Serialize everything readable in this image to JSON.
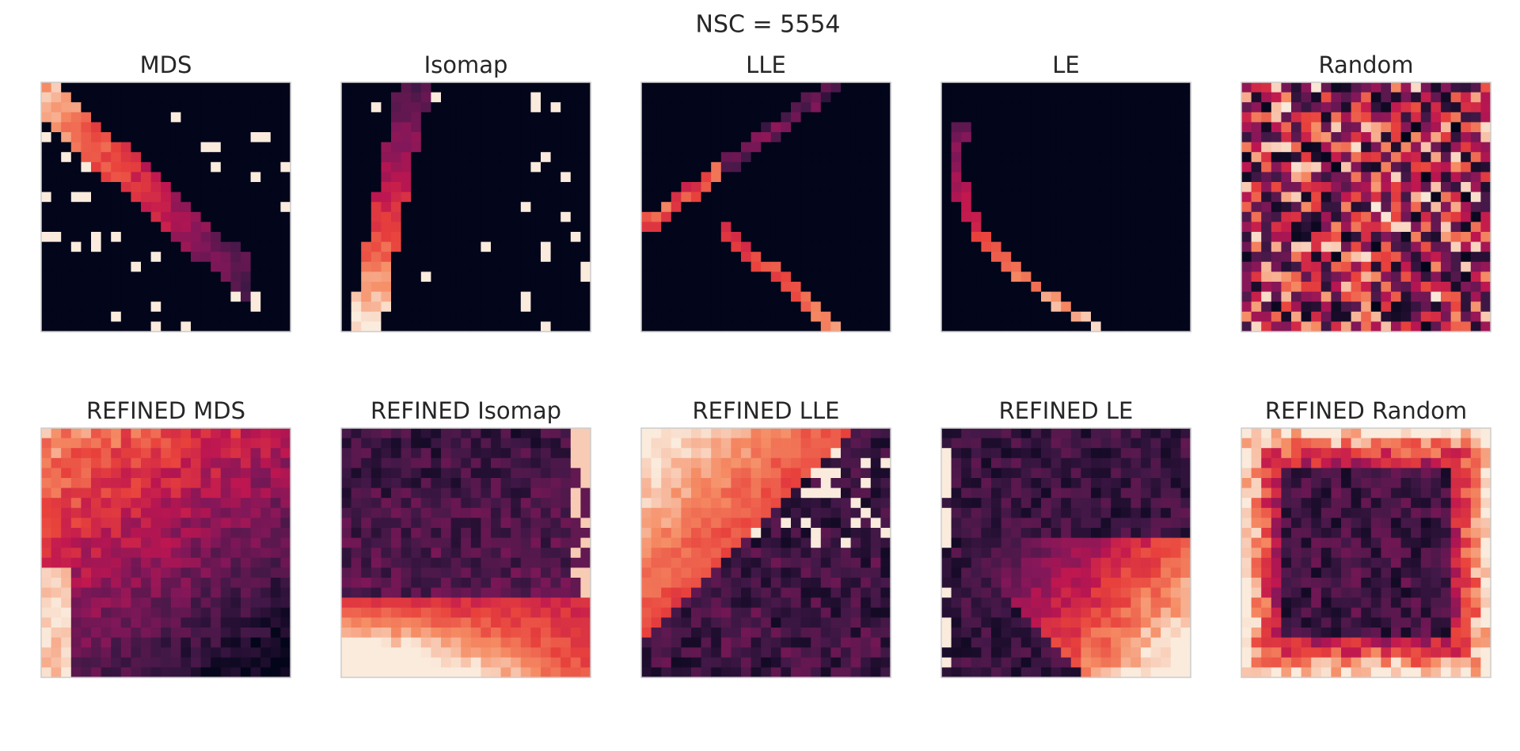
{
  "title": "NSC = 5554",
  "panels": [
    {
      "title": "MDS"
    },
    {
      "title": "Isomap"
    },
    {
      "title": "LLE"
    },
    {
      "title": "LE"
    },
    {
      "title": "Random"
    },
    {
      "title": "REFINED MDS"
    },
    {
      "title": "REFINED Isomap"
    },
    {
      "title": "REFINED LLE"
    },
    {
      "title": "REFINED LE"
    },
    {
      "title": "REFINED Random"
    }
  ]
}
